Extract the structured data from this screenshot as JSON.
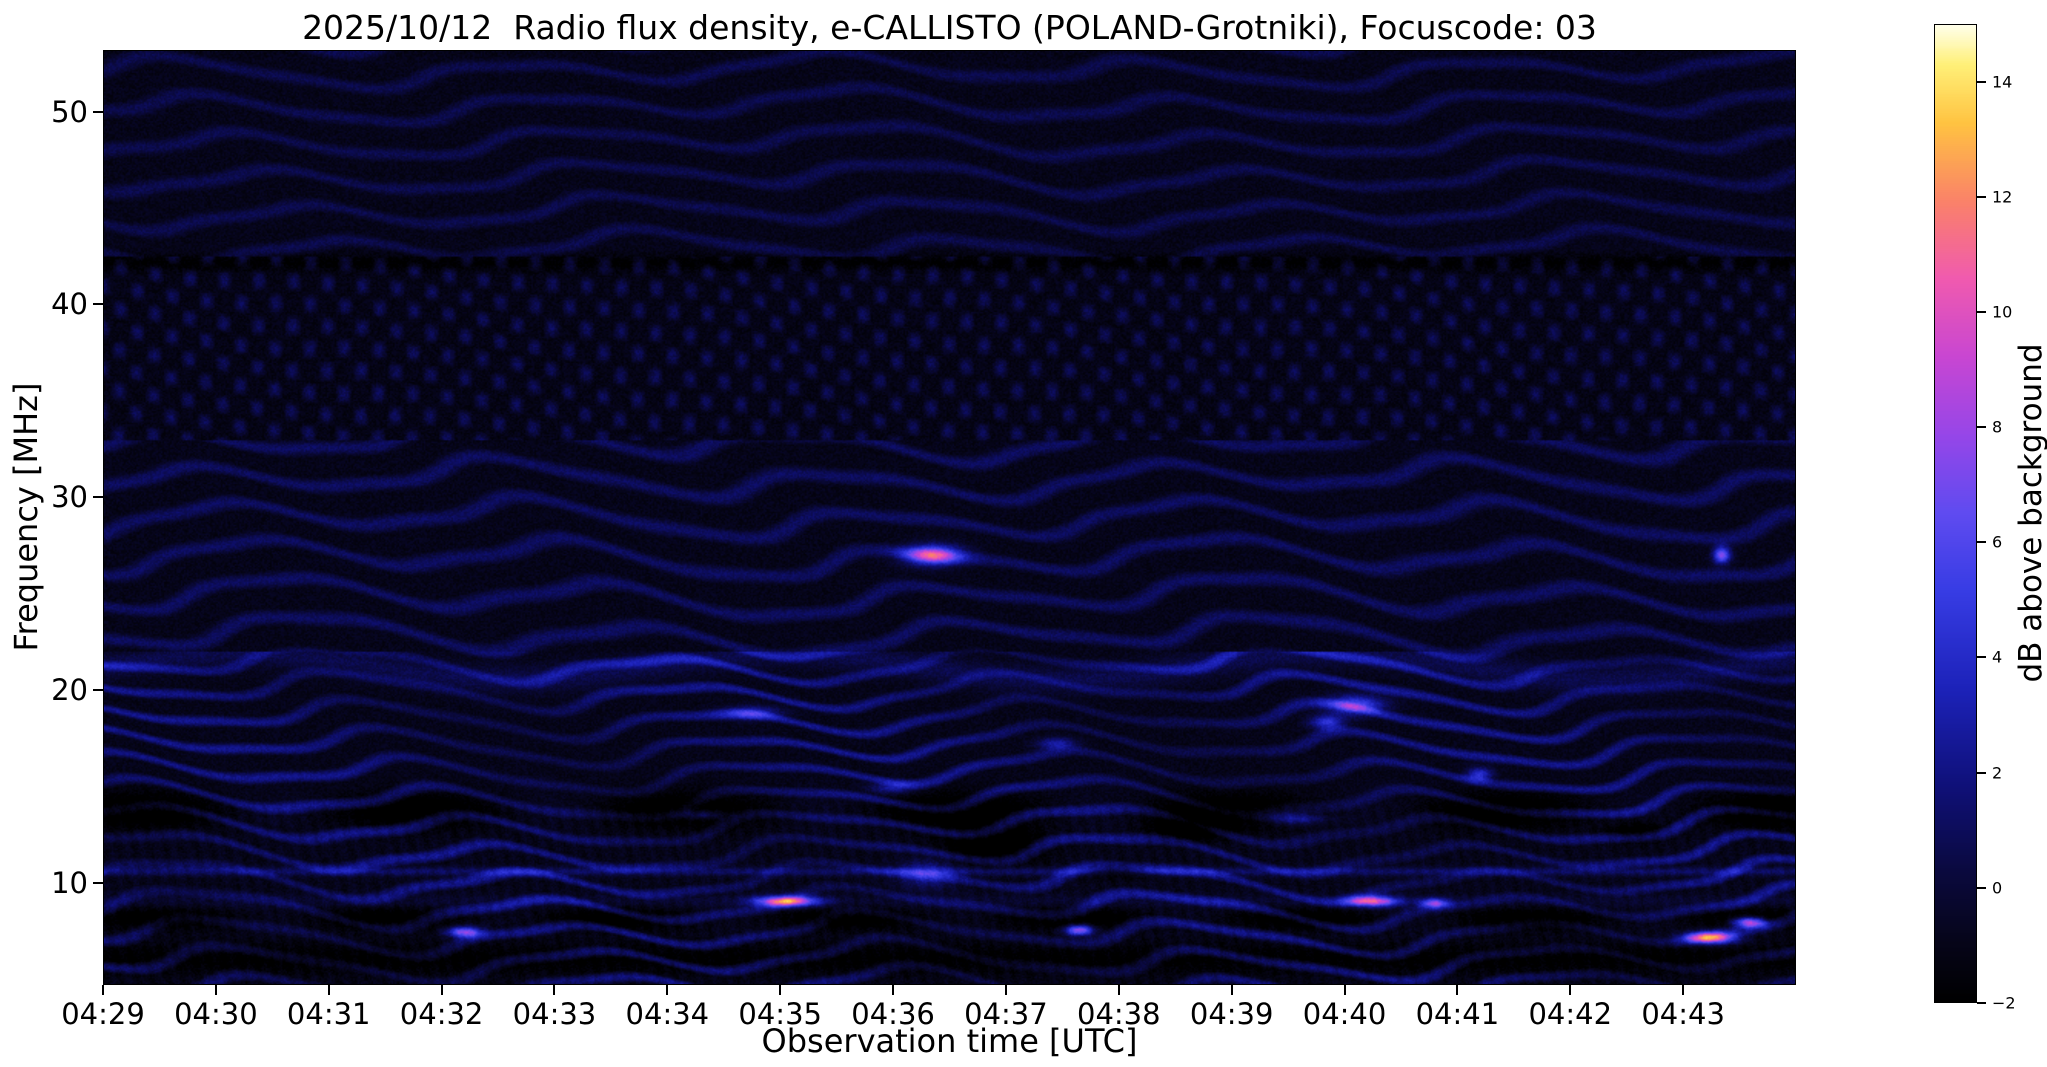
{
  "chart_data": {
    "type": "heatmap",
    "title": "2025/10/12  Radio flux density, e-CALLISTO (POLAND-Grotniki), Focuscode: 03",
    "date": "2025/10/12",
    "instrument": "e-CALLISTO",
    "station": "POLAND-Grotniki",
    "focuscode": "03",
    "xlabel": "Observation time [UTC]",
    "ylabel": "Frequency [MHz]",
    "colorbar_label": "dB above background",
    "x_ticks": [
      "04:29",
      "04:30",
      "04:31",
      "04:32",
      "04:33",
      "04:34",
      "04:35",
      "04:36",
      "04:37",
      "04:38",
      "04:39",
      "04:40",
      "04:41",
      "04:42",
      "04:43"
    ],
    "x_start_utc": "04:29",
    "x_range_minutes": [
      0,
      15
    ],
    "y_ticks": [
      10,
      20,
      30,
      40,
      50
    ],
    "y_range_mhz": [
      4.7,
      53.2
    ],
    "colorbar_ticks": [
      -2,
      0,
      2,
      4,
      6,
      8,
      10,
      12,
      14
    ],
    "value_range_db": [
      -2,
      15
    ],
    "grid": false,
    "legend": "none",
    "colormap_stops": [
      [
        0.0,
        [
          0,
          0,
          0
        ]
      ],
      [
        0.06,
        [
          6,
          5,
          25
        ]
      ],
      [
        0.13,
        [
          10,
          9,
          60
        ]
      ],
      [
        0.22,
        [
          15,
          16,
          120
        ]
      ],
      [
        0.32,
        [
          28,
          34,
          185
        ]
      ],
      [
        0.42,
        [
          55,
          60,
          228
        ]
      ],
      [
        0.5,
        [
          95,
          75,
          240
        ]
      ],
      [
        0.58,
        [
          150,
          70,
          232
        ]
      ],
      [
        0.66,
        [
          200,
          70,
          210
        ]
      ],
      [
        0.74,
        [
          240,
          90,
          175
        ]
      ],
      [
        0.82,
        [
          250,
          130,
          105
        ]
      ],
      [
        0.9,
        [
          255,
          195,
          65
        ]
      ],
      [
        0.96,
        [
          255,
          240,
          120
        ]
      ],
      [
        1.0,
        [
          255,
          255,
          235
        ]
      ]
    ],
    "background": {
      "description": "Dark blue spectrogram with undulating horizontal interference fringes; cross-hatched darker band 33-42 MHz; bright narrow band near 10.5 MHz; dark blocky bands near 8 and 13-14 MHz",
      "base_db": -1.0,
      "fringe_amplitude_db": 4.0
    },
    "bursts": [
      {
        "time_min": 7.35,
        "freq_mhz": 27.0,
        "width_min": 0.5,
        "height_mhz": 1.0,
        "peak_db": 10.5
      },
      {
        "time_min": 14.35,
        "freq_mhz": 27.0,
        "width_min": 0.15,
        "height_mhz": 0.9,
        "peak_db": 8.5
      },
      {
        "time_min": 5.75,
        "freq_mhz": 18.8,
        "width_min": 0.5,
        "height_mhz": 0.7,
        "peak_db": 4.5
      },
      {
        "time_min": 8.45,
        "freq_mhz": 17.2,
        "width_min": 0.35,
        "height_mhz": 0.6,
        "peak_db": 4.0
      },
      {
        "time_min": 11.1,
        "freq_mhz": 19.2,
        "width_min": 0.5,
        "height_mhz": 1.0,
        "peak_db": 7.0
      },
      {
        "time_min": 10.85,
        "freq_mhz": 18.3,
        "width_min": 0.3,
        "height_mhz": 0.7,
        "peak_db": 5.5
      },
      {
        "time_min": 12.2,
        "freq_mhz": 15.6,
        "width_min": 0.22,
        "height_mhz": 0.7,
        "peak_db": 5.5
      },
      {
        "time_min": 10.55,
        "freq_mhz": 13.3,
        "width_min": 0.5,
        "height_mhz": 0.6,
        "peak_db": 4.5
      },
      {
        "time_min": 5.3,
        "freq_mhz": 13.5,
        "width_min": 0.45,
        "height_mhz": 0.5,
        "peak_db": 3.5
      },
      {
        "time_min": 6.05,
        "freq_mhz": 9.0,
        "width_min": 0.55,
        "height_mhz": 0.55,
        "peak_db": 12.0
      },
      {
        "time_min": 11.25,
        "freq_mhz": 9.0,
        "width_min": 0.45,
        "height_mhz": 0.55,
        "peak_db": 11.0
      },
      {
        "time_min": 11.8,
        "freq_mhz": 8.9,
        "width_min": 0.25,
        "height_mhz": 0.5,
        "peak_db": 8.0
      },
      {
        "time_min": 3.2,
        "freq_mhz": 7.4,
        "width_min": 0.3,
        "height_mhz": 0.55,
        "peak_db": 9.0
      },
      {
        "time_min": 8.65,
        "freq_mhz": 7.5,
        "width_min": 0.25,
        "height_mhz": 0.55,
        "peak_db": 9.5
      },
      {
        "time_min": 14.25,
        "freq_mhz": 7.1,
        "width_min": 0.45,
        "height_mhz": 0.6,
        "peak_db": 13.0
      },
      {
        "time_min": 14.6,
        "freq_mhz": 7.9,
        "width_min": 0.3,
        "height_mhz": 0.55,
        "peak_db": 11.5
      },
      {
        "time_min": 7.3,
        "freq_mhz": 10.4,
        "width_min": 0.5,
        "height_mhz": 1.4,
        "peak_db": 4.0
      },
      {
        "time_min": 7.0,
        "freq_mhz": 14.9,
        "width_min": 0.4,
        "height_mhz": 0.6,
        "peak_db": 4.0
      }
    ],
    "dark_patches": [
      {
        "time_min": 7.9,
        "freq_mhz": 11.9,
        "width_min": 0.8,
        "height_mhz": 1.8,
        "peak_db": -3.0
      },
      {
        "time_min": 9.6,
        "freq_mhz": 12.8,
        "width_min": 0.6,
        "height_mhz": 1.3,
        "peak_db": -2.5
      },
      {
        "time_min": 13.6,
        "freq_mhz": 12.6,
        "width_min": 0.5,
        "height_mhz": 1.0,
        "peak_db": -2.0
      },
      {
        "time_min": 9.0,
        "freq_mhz": 10.6,
        "width_min": 0.5,
        "height_mhz": 0.8,
        "peak_db": -2.0
      }
    ]
  }
}
